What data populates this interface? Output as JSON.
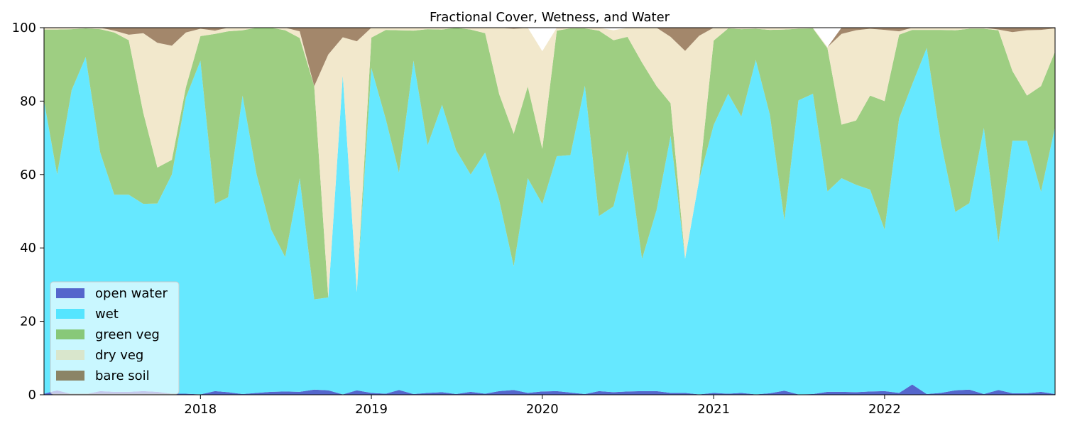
{
  "chart_data": {
    "type": "area",
    "stacked": true,
    "title": "Fractional Cover, Wetness, and Water",
    "xlabel": "",
    "ylabel": "",
    "ylim": [
      0,
      100
    ],
    "xlim": [
      "2017-02-01",
      "2022-12-31"
    ],
    "x_ticks": [
      "2018",
      "2019",
      "2020",
      "2021",
      "2022"
    ],
    "x_tick_dates": [
      "2018-01-01",
      "2019-01-01",
      "2020-01-01",
      "2021-01-01",
      "2022-01-01"
    ],
    "y_ticks": [
      0,
      20,
      40,
      60,
      80,
      100
    ],
    "grid": false,
    "legend_position": "lower-left",
    "dates": [
      "2017-02-01",
      "2017-03-01",
      "2017-04-01",
      "2017-05-01",
      "2017-06-01",
      "2017-07-01",
      "2017-08-01",
      "2017-09-01",
      "2017-10-01",
      "2017-11-01",
      "2017-12-01",
      "2018-01-01",
      "2018-02-01",
      "2018-03-01",
      "2018-04-01",
      "2018-05-01",
      "2018-06-01",
      "2018-07-01",
      "2018-08-01",
      "2018-09-01",
      "2018-10-01",
      "2018-11-01",
      "2018-12-01",
      "2019-01-01",
      "2019-02-01",
      "2019-03-01",
      "2019-04-01",
      "2019-05-01",
      "2019-06-01",
      "2019-07-01",
      "2019-08-01",
      "2019-09-01",
      "2019-10-01",
      "2019-11-01",
      "2019-12-01",
      "2020-01-01",
      "2020-02-01",
      "2020-03-01",
      "2020-04-01",
      "2020-05-01",
      "2020-06-01",
      "2020-07-01",
      "2020-08-01",
      "2020-09-01",
      "2020-10-01",
      "2020-11-01",
      "2020-12-01",
      "2021-01-01",
      "2021-02-01",
      "2021-03-01",
      "2021-04-01",
      "2021-05-01",
      "2021-06-01",
      "2021-07-01",
      "2021-08-01",
      "2021-09-01",
      "2021-10-01",
      "2021-11-01",
      "2021-12-01",
      "2022-01-01",
      "2022-02-01",
      "2022-03-01",
      "2022-04-01",
      "2022-05-01",
      "2022-06-01",
      "2022-07-01",
      "2022-08-01",
      "2022-09-01",
      "2022-10-01",
      "2022-11-01",
      "2022-12-01",
      "2022-12-31"
    ],
    "series": [
      {
        "name": "open water",
        "color": "#5566cc",
        "values": [
          0.3,
          1.2,
          0.2,
          0.2,
          1.0,
          0.8,
          0.8,
          1.0,
          0.8,
          0.3,
          0.3,
          0.1,
          1.0,
          0.7,
          0.2,
          0.5,
          0.8,
          0.9,
          0.8,
          1.4,
          1.2,
          0.1,
          1.2,
          0.5,
          0.3,
          1.3,
          0.2,
          0.5,
          0.7,
          0.2,
          0.8,
          0.3,
          1.0,
          1.3,
          0.5,
          0.9,
          1.0,
          0.6,
          0.2,
          1.0,
          0.7,
          0.9,
          1.0,
          1.0,
          0.5,
          0.5,
          0.1,
          0.5,
          0.3,
          0.5,
          0.1,
          0.4,
          1.1,
          0.1,
          0.2,
          0.8,
          0.8,
          0.7,
          0.9,
          1.0,
          0.5,
          2.8,
          0.2,
          0.5,
          1.2,
          1.4,
          0.2,
          1.3,
          0.4,
          0.4,
          0.8,
          0.2
        ]
      },
      {
        "name": "wet",
        "color": "#66e8ff",
        "values": [
          79.7,
          58.8,
          82.8,
          91.8,
          65.0,
          53.7,
          53.7,
          51.0,
          51.3,
          59.7,
          80.7,
          90.9,
          51.0,
          53.1,
          81.3,
          59.5,
          44.2,
          36.6,
          58.2,
          24.6,
          25.3,
          86.9,
          26.8,
          88.5,
          74.7,
          59.2,
          90.8,
          67.5,
          78.3,
          66.4,
          59.2,
          65.7,
          52.0,
          33.7,
          58.5,
          51.1,
          64.0,
          64.7,
          84.0,
          47.7,
          50.6,
          65.6,
          36.0,
          49.3,
          70.0,
          36.6,
          58.5,
          73.0,
          81.7,
          75.3,
          91.1,
          75.9,
          46.4,
          80.1,
          81.8,
          54.6,
          58.2,
          56.5,
          55.0,
          44.0,
          74.8,
          81.8,
          94.3,
          68.5,
          48.6,
          50.8,
          72.5,
          40.2,
          68.8,
          68.8,
          54.5,
          72.8
        ]
      },
      {
        "name": "green veg",
        "color": "#9ece82",
        "values": [
          19.5,
          39.5,
          16.6,
          7.8,
          33.6,
          44.2,
          42.1,
          24.8,
          9.8,
          4.0,
          2.8,
          6.7,
          46.3,
          45.2,
          17.8,
          40.0,
          55.0,
          61.8,
          38.2,
          58.1,
          0.0,
          0.0,
          0.0,
          8.3,
          24.4,
          38.8,
          8.2,
          31.6,
          20.5,
          33.4,
          39.5,
          32.5,
          28.9,
          36.1,
          25.0,
          15.0,
          34.2,
          34.5,
          15.6,
          50.5,
          45.3,
          31.0,
          53.5,
          33.8,
          8.9,
          0.0,
          0.0,
          23.0,
          17.8,
          23.8,
          8.5,
          23.1,
          52.0,
          19.5,
          17.8,
          39.0,
          14.6,
          17.5,
          25.6,
          35.0,
          22.8,
          14.8,
          4.9,
          30.4,
          49.5,
          47.5,
          27.0,
          57.8,
          19.0,
          12.3,
          28.8,
          20.5
        ]
      },
      {
        "name": "dry veg",
        "color": "#f2e8cc",
        "values": [
          0.4,
          0.5,
          0.4,
          0.2,
          0.4,
          0.5,
          1.5,
          21.7,
          34.0,
          31.1,
          14.9,
          2.0,
          0.9,
          1.0,
          0.7,
          0.5,
          0.0,
          0.7,
          1.8,
          0.0,
          66.2,
          10.4,
          68.3,
          2.7,
          0.6,
          0.7,
          0.8,
          0.4,
          0.5,
          0.0,
          0.5,
          1.5,
          18.1,
          28.6,
          16.1,
          26.6,
          0.8,
          0.2,
          0.2,
          0.8,
          2.7,
          2.5,
          9.5,
          15.9,
          18.1,
          56.6,
          39.2,
          3.5,
          0.2,
          0.4,
          0.3,
          0.6,
          0.5,
          0.3,
          0.2,
          0.3,
          24.7,
          24.6,
          18.2,
          19.4,
          0.9,
          0.6,
          0.6,
          0.6,
          0.7,
          0.3,
          0.3,
          0.2,
          10.6,
          17.8,
          15.3,
          6.3
        ]
      },
      {
        "name": "bare soil",
        "color": "#a3876b",
        "values": [
          0.1,
          0.0,
          0.0,
          0.0,
          0.0,
          0.8,
          1.9,
          1.5,
          4.1,
          4.9,
          1.3,
          0.3,
          0.8,
          0.0,
          0.0,
          0.0,
          0.0,
          0.0,
          1.0,
          15.9,
          7.3,
          2.6,
          3.7,
          0.0,
          0.0,
          0.0,
          0.0,
          0.0,
          0.0,
          0.0,
          0.0,
          0.0,
          0.0,
          0.3,
          0.0,
          0.0,
          0.0,
          0.0,
          0.0,
          0.0,
          0.0,
          0.0,
          0.0,
          0.0,
          2.5,
          6.3,
          2.2,
          0.0,
          0.0,
          0.0,
          0.0,
          0.0,
          0.0,
          0.0,
          0.0,
          0.0,
          1.7,
          0.7,
          0.3,
          0.6,
          1.0,
          0.0,
          0.0,
          0.0,
          0.0,
          0.0,
          0.0,
          0.5,
          1.2,
          0.7,
          0.6,
          0.2
        ]
      }
    ],
    "legend_entries": [
      {
        "label": "open water",
        "color": "#5566cc"
      },
      {
        "label": "wet",
        "color": "#55e5ff"
      },
      {
        "label": "green veg",
        "color": "#88c879"
      },
      {
        "label": "dry veg",
        "color": "#d9e6cc"
      },
      {
        "label": "bare soil",
        "color": "#8b8466"
      }
    ]
  }
}
